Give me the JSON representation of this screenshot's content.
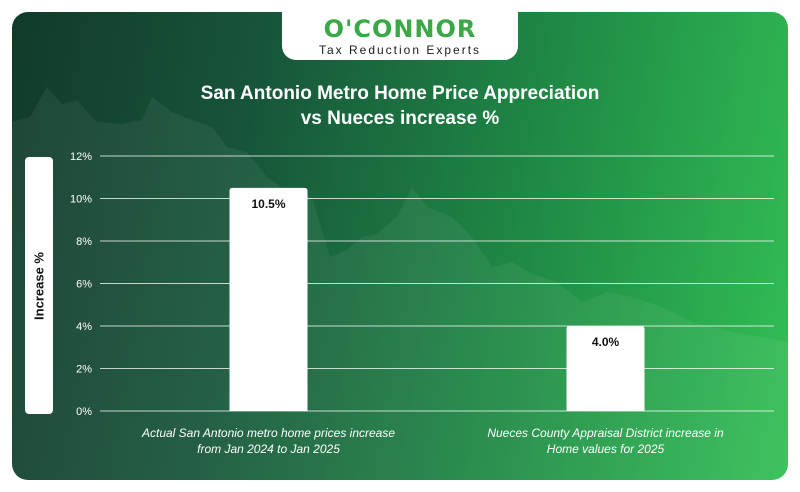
{
  "brand": {
    "name": "O'CONNOR",
    "tagline": "Tax Reduction Experts"
  },
  "chart_data": {
    "type": "bar",
    "title_line1": "San Antonio Metro Home Price Appreciation",
    "title_line2": "vs Nueces increase %",
    "ylabel": "Increase %",
    "ylim": [
      0,
      12
    ],
    "yticks": [
      "0%",
      "2%",
      "4%",
      "6%",
      "8%",
      "10%",
      "12%"
    ],
    "grid": true,
    "categories": [
      [
        "Actual San Antonio metro home prices increase",
        "from Jan 2024 to Jan 2025"
      ],
      [
        "Nueces County Appraisal District increase in",
        "Home values for 2025"
      ]
    ],
    "values": [
      10.5,
      4.0
    ],
    "value_labels": [
      "10.5%",
      "4.0%"
    ],
    "colors": {
      "bar": "#ffffff",
      "grid": "#ffffff",
      "text": "#ffffff",
      "label": "#111111"
    }
  }
}
